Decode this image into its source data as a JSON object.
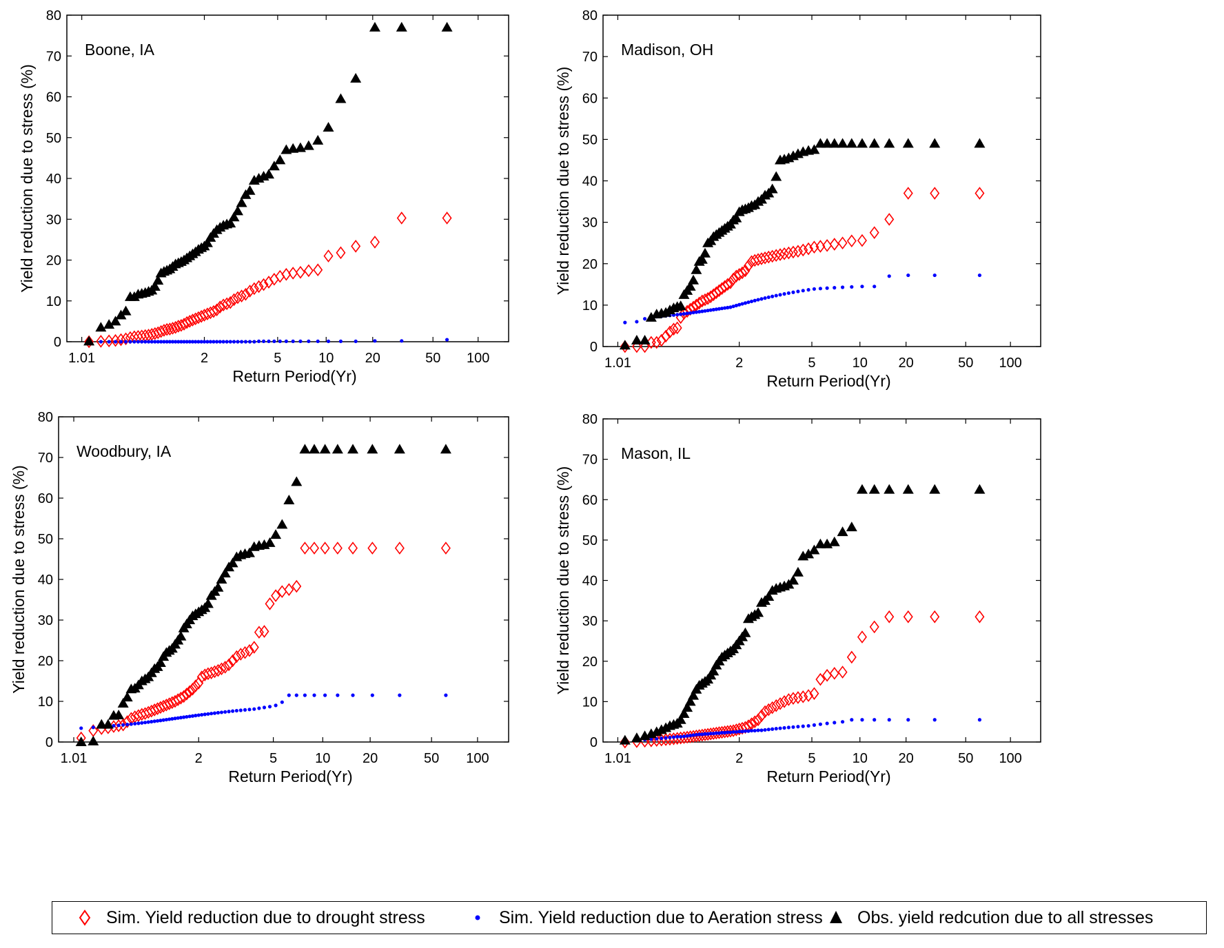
{
  "colors": {
    "drought": "#ff0000",
    "aeration": "#0000ff",
    "observed": "#000000"
  },
  "legend": [
    {
      "key": "drought",
      "marker": "diamond-open",
      "label": "Sim. Yield reduction due to drought stress"
    },
    {
      "key": "aeration",
      "marker": "dot",
      "label": "Sim. Yield reduction due to Aeration stress"
    },
    {
      "key": "observed",
      "marker": "triangle-filled",
      "label": "Obs. yield redcution due to all stresses"
    }
  ],
  "chart_data": [
    {
      "type": "scatter",
      "annotation": "Boone, IA",
      "xlabel": "Return Period(Yr)",
      "ylabel": "Yield reduction due to stress (%)",
      "x_scale": "gumbel",
      "x_ticks": [
        "1.01",
        "2",
        "5",
        "10",
        "20",
        "50",
        "100"
      ],
      "ylim": [
        0,
        80
      ],
      "y_ticks": [
        0,
        10,
        20,
        30,
        40,
        50,
        60,
        70,
        80
      ],
      "n_points": 61,
      "series": [
        {
          "key": "drought",
          "values": [
            0,
            0.1,
            0.2,
            0.3,
            0.5,
            0.7,
            1,
            1.2,
            1.3,
            1.4,
            1.5,
            1.6,
            1.8,
            2,
            2.2,
            2.5,
            2.8,
            3,
            3.1,
            3.3,
            3.5,
            3.8,
            4,
            4.3,
            4.7,
            5,
            5.3,
            5.6,
            5.9,
            6.2,
            6.5,
            6.8,
            7.1,
            7.4,
            7.8,
            8.5,
            9,
            9.3,
            9.6,
            10.3,
            10.8,
            11.2,
            11.6,
            12.4,
            13,
            13.5,
            14,
            14.6,
            15.3,
            16,
            16.5,
            16.8,
            17,
            17.4,
            17.6,
            21,
            21.8,
            23.4,
            24.4,
            30.3,
            30.3
          ]
        },
        {
          "key": "aeration",
          "values": [
            0,
            0,
            0,
            0,
            0,
            0,
            0,
            0,
            0,
            0,
            0,
            0,
            0,
            0,
            0,
            0,
            0,
            0,
            0,
            0,
            0,
            0,
            0,
            0,
            0,
            0,
            0,
            0,
            0,
            0,
            0,
            0,
            0,
            0,
            0,
            0,
            0,
            0,
            0,
            0,
            0,
            0,
            0,
            0,
            0,
            0.1,
            0.1,
            0.1,
            0.1,
            0.1,
            0.1,
            0.1,
            0.1,
            0.1,
            0.1,
            0.1,
            0.1,
            0.1,
            0.2,
            0.2,
            0.5
          ]
        },
        {
          "key": "observed",
          "values": [
            0.1,
            3.5,
            4.2,
            5,
            6.5,
            7.5,
            11,
            11,
            11.6,
            11.8,
            12,
            12.3,
            12.6,
            13.5,
            15,
            16.8,
            17.2,
            17.5,
            17.8,
            18.4,
            19,
            19.3,
            19.6,
            20,
            20.5,
            21,
            21.5,
            22,
            22.6,
            23,
            23.4,
            24.2,
            25.5,
            26.5,
            27.4,
            28,
            28.5,
            28.8,
            29,
            30.5,
            32,
            34,
            36,
            37,
            39.5,
            40,
            40.5,
            41,
            43,
            44.5,
            47,
            47.3,
            47.5,
            48,
            49.3,
            52.5,
            59.5,
            64.5,
            77,
            77,
            77
          ]
        }
      ]
    },
    {
      "type": "scatter",
      "annotation": "Madison, OH",
      "xlabel": "Return Period(Yr)",
      "ylabel": "Yield reduction due to stress (%)",
      "x_scale": "gumbel",
      "x_ticks": [
        "1.01",
        "2",
        "5",
        "10",
        "20",
        "50",
        "100"
      ],
      "ylim": [
        0,
        80
      ],
      "y_ticks": [
        0,
        10,
        20,
        30,
        40,
        50,
        60,
        70,
        80
      ],
      "n_points": 61,
      "series": [
        {
          "key": "drought",
          "values": [
            0,
            0,
            0,
            1,
            1,
            1.5,
            2.5,
            3.5,
            4.2,
            4.5,
            7,
            8,
            8.5,
            9,
            9.5,
            10,
            10.5,
            11,
            11.3,
            11.6,
            12,
            12.5,
            13,
            13.5,
            14,
            14.5,
            15,
            15.4,
            16.3,
            17,
            17.4,
            17.8,
            18.3,
            19.5,
            20.5,
            20.8,
            21,
            21.2,
            21.4,
            21.6,
            21.8,
            22,
            22.2,
            22.4,
            22.6,
            22.8,
            23,
            23.3,
            23.6,
            24,
            24.2,
            24.4,
            24.7,
            25,
            25.5,
            25.6,
            27.5,
            30.7,
            37,
            37,
            37
          ]
        },
        {
          "key": "aeration",
          "values": [
            5.8,
            6,
            6.7,
            7,
            7.2,
            7.3,
            7.4,
            7.5,
            7.6,
            7.7,
            7.8,
            7.9,
            8,
            8.1,
            8.2,
            8.3,
            8.4,
            8.5,
            8.6,
            8.7,
            8.8,
            8.9,
            9,
            9.1,
            9.2,
            9.3,
            9.4,
            9.5,
            9.7,
            9.9,
            10.1,
            10.3,
            10.5,
            10.7,
            10.9,
            11.1,
            11.3,
            11.5,
            11.7,
            11.9,
            12.1,
            12.3,
            12.5,
            12.7,
            12.9,
            13.1,
            13.3,
            13.5,
            13.7,
            13.9,
            14,
            14.1,
            14.2,
            14.3,
            14.4,
            14.5,
            14.5,
            17,
            17.2,
            17.2,
            17.2
          ]
        },
        {
          "key": "observed",
          "values": [
            0.3,
            1.5,
            1.5,
            7,
            7.8,
            8,
            8.2,
            8.8,
            9.3,
            9.6,
            9.8,
            12.5,
            13.5,
            14.5,
            16,
            18.5,
            20.5,
            21,
            22.5,
            25,
            25.5,
            26.5,
            27,
            27.5,
            28,
            28.5,
            29,
            29.5,
            30.5,
            31,
            32.5,
            33,
            33.2,
            33.5,
            34,
            34.2,
            35,
            35.5,
            36.5,
            37,
            38,
            41,
            45,
            45.2,
            45.5,
            46,
            46.5,
            47,
            47.3,
            47.5,
            49,
            49,
            49,
            49,
            49,
            49,
            49,
            49,
            49,
            49,
            49
          ]
        }
      ]
    },
    {
      "type": "scatter",
      "annotation": "Woodbury, IA",
      "xlabel": "Return Period(Yr)",
      "ylabel": "Yield reduction due to stress (%)",
      "x_scale": "gumbel",
      "x_ticks": [
        "1.01",
        "2",
        "5",
        "10",
        "20",
        "50",
        "100"
      ],
      "ylim": [
        0,
        80
      ],
      "y_ticks": [
        0,
        10,
        20,
        30,
        40,
        50,
        60,
        70,
        80
      ],
      "n_points": 61,
      "series": [
        {
          "key": "drought",
          "values": [
            1,
            2.8,
            3.3,
            3.5,
            3.8,
            4,
            4.2,
            5,
            5.8,
            6.2,
            6.5,
            6.8,
            7,
            7.3,
            7.6,
            7.9,
            8.2,
            8.5,
            8.8,
            9.1,
            9.4,
            9.7,
            10,
            10.4,
            10.8,
            11.2,
            11.8,
            12.4,
            13,
            13.8,
            14.5,
            16,
            16.5,
            16.8,
            17,
            17.3,
            17.6,
            18,
            18.4,
            19,
            20,
            21,
            21.6,
            22,
            22.5,
            23.3,
            27,
            27.2,
            34,
            36,
            37,
            37.5,
            38.3,
            47.7,
            47.7,
            47.7,
            47.7,
            47.7,
            47.7,
            47.7,
            47.7
          ]
        },
        {
          "key": "aeration",
          "values": [
            3.4,
            3.6,
            3.8,
            3.9,
            4,
            4.1,
            4.2,
            4.3,
            4.4,
            4.5,
            4.6,
            4.7,
            4.8,
            4.9,
            5,
            5.1,
            5.2,
            5.3,
            5.4,
            5.5,
            5.6,
            5.7,
            5.8,
            5.9,
            6,
            6.1,
            6.2,
            6.3,
            6.4,
            6.5,
            6.6,
            6.7,
            6.8,
            6.9,
            7,
            7.1,
            7.2,
            7.3,
            7.4,
            7.5,
            7.6,
            7.7,
            7.8,
            7.9,
            8,
            8.1,
            8.3,
            8.5,
            8.7,
            9,
            9.8,
            11.5,
            11.5,
            11.5,
            11.5,
            11.5,
            11.5,
            11.5,
            11.5,
            11.5,
            11.5
          ]
        },
        {
          "key": "observed",
          "values": [
            0,
            0.2,
            4.3,
            4.3,
            6.5,
            6.6,
            9.5,
            11,
            13,
            13.2,
            14,
            15,
            15.5,
            16,
            17,
            18,
            18.5,
            19.5,
            21,
            22,
            22.5,
            23,
            24,
            25,
            26,
            28,
            29,
            30,
            31,
            31.5,
            32,
            32.5,
            33,
            34,
            36,
            37,
            38,
            40,
            41.5,
            43,
            44,
            45.5,
            46,
            46.3,
            46.5,
            48,
            48.3,
            48.5,
            49,
            51,
            53.5,
            59.5,
            64,
            72,
            72,
            72,
            72,
            72,
            72,
            72,
            72
          ]
        }
      ]
    },
    {
      "type": "scatter",
      "annotation": "Mason, IL",
      "xlabel": "Return Period(Yr)",
      "ylabel": "Yield reduction due to stress (%)",
      "x_scale": "gumbel",
      "x_ticks": [
        "1.01",
        "2",
        "5",
        "10",
        "20",
        "50",
        "100"
      ],
      "ylim": [
        0,
        80
      ],
      "y_ticks": [
        0,
        10,
        20,
        30,
        40,
        50,
        60,
        70,
        80
      ],
      "n_points": 61,
      "series": [
        {
          "key": "drought",
          "values": [
            0,
            0.1,
            0.2,
            0.3,
            0.4,
            0.5,
            0.6,
            0.7,
            0.8,
            0.9,
            1,
            1.1,
            1.2,
            1.3,
            1.4,
            1.5,
            1.6,
            1.7,
            1.8,
            1.9,
            2,
            2.1,
            2.2,
            2.3,
            2.4,
            2.5,
            2.6,
            2.7,
            2.8,
            3,
            3.2,
            3.4,
            3.6,
            4,
            4.5,
            5,
            5.5,
            6.5,
            7.5,
            8,
            8.5,
            9,
            9.5,
            10,
            10.5,
            10.8,
            11,
            11.2,
            11.5,
            12,
            15.5,
            16.5,
            17,
            17.3,
            21,
            26,
            28.5,
            31,
            31,
            31,
            31
          ]
        },
        {
          "key": "aeration",
          "values": [
            0.3,
            0.5,
            0.6,
            0.7,
            0.8,
            0.9,
            1,
            1.1,
            1.2,
            1.3,
            1.3,
            1.4,
            1.5,
            1.6,
            1.7,
            1.8,
            1.9,
            1.9,
            2,
            2,
            2.1,
            2.1,
            2.2,
            2.2,
            2.3,
            2.3,
            2.4,
            2.4,
            2.5,
            2.5,
            2.6,
            2.6,
            2.7,
            2.7,
            2.8,
            2.8,
            2.9,
            2.9,
            3,
            3.1,
            3.2,
            3.3,
            3.4,
            3.5,
            3.6,
            3.7,
            3.8,
            3.9,
            4,
            4.2,
            4.4,
            4.6,
            4.8,
            5,
            5.5,
            5.5,
            5.5,
            5.5,
            5.5,
            5.5,
            5.5
          ]
        },
        {
          "key": "observed",
          "values": [
            0.4,
            1,
            1.5,
            2,
            2.5,
            3,
            3.5,
            4,
            4.3,
            4.6,
            5.5,
            7,
            8.5,
            10,
            11.5,
            13,
            14,
            14.5,
            15,
            15.5,
            16.5,
            17.5,
            19,
            20,
            21,
            21.5,
            22,
            22.5,
            23,
            24,
            25,
            26,
            27,
            30.5,
            31,
            31.5,
            32,
            34.5,
            35,
            36,
            37.5,
            38,
            38.3,
            38.6,
            39,
            40,
            42,
            46,
            46.5,
            47.5,
            49,
            49,
            49.5,
            52,
            53.2,
            62.5,
            62.5,
            62.5,
            62.5,
            62.5,
            62.5
          ]
        }
      ]
    }
  ]
}
